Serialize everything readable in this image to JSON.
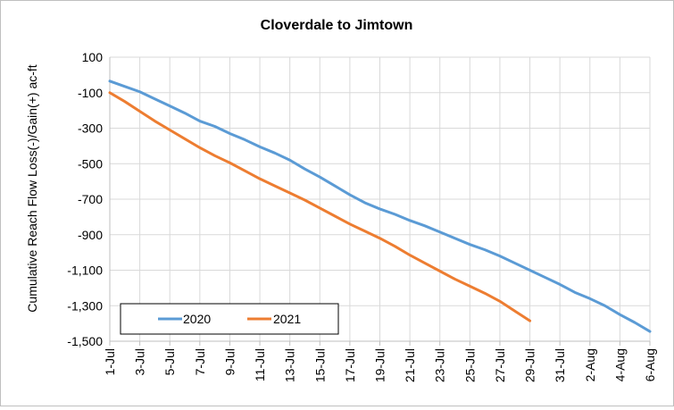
{
  "chart_data": {
    "type": "line",
    "title": "Cloverdale to Jimtown",
    "xlabel": "",
    "ylabel": "Cumulative Reach Flow Loss(-)/Gain(+) ac-ft",
    "ylim": [
      -1500,
      100
    ],
    "yticks": [
      100,
      -100,
      -300,
      -500,
      -700,
      -900,
      -1100,
      -1300,
      -1500
    ],
    "ytick_labels": [
      "100",
      "-100",
      "-300",
      "-500",
      "-700",
      "-900",
      "-1,100",
      "-1,300",
      "-1,500"
    ],
    "x_tick_labels": [
      "1-Jul",
      "3-Jul",
      "5-Jul",
      "7-Jul",
      "9-Jul",
      "11-Jul",
      "13-Jul",
      "15-Jul",
      "17-Jul",
      "19-Jul",
      "21-Jul",
      "23-Jul",
      "25-Jul",
      "27-Jul",
      "29-Jul",
      "31-Jul",
      "2-Aug",
      "4-Aug",
      "6-Aug"
    ],
    "grid": true,
    "legend": "bottom-left",
    "series": [
      {
        "name": "2020",
        "color": "#5b9bd5",
        "x": [
          "1-Jul",
          "2-Jul",
          "3-Jul",
          "4-Jul",
          "5-Jul",
          "6-Jul",
          "7-Jul",
          "8-Jul",
          "9-Jul",
          "10-Jul",
          "11-Jul",
          "12-Jul",
          "13-Jul",
          "14-Jul",
          "15-Jul",
          "16-Jul",
          "17-Jul",
          "18-Jul",
          "19-Jul",
          "20-Jul",
          "21-Jul",
          "22-Jul",
          "23-Jul",
          "24-Jul",
          "25-Jul",
          "26-Jul",
          "27-Jul",
          "28-Jul",
          "29-Jul",
          "30-Jul",
          "31-Jul",
          "1-Aug",
          "2-Aug",
          "3-Aug",
          "4-Aug",
          "5-Aug",
          "6-Aug"
        ],
        "values": [
          -35,
          -65,
          -95,
          -135,
          -175,
          -215,
          -260,
          -290,
          -330,
          -365,
          -405,
          -440,
          -480,
          -530,
          -575,
          -625,
          -675,
          -720,
          -755,
          -785,
          -820,
          -850,
          -885,
          -920,
          -955,
          -985,
          -1020,
          -1060,
          -1100,
          -1140,
          -1180,
          -1225,
          -1260,
          -1300,
          -1350,
          -1395,
          -1445
        ]
      },
      {
        "name": "2021",
        "color": "#ed7d31",
        "x": [
          "1-Jul",
          "2-Jul",
          "3-Jul",
          "4-Jul",
          "5-Jul",
          "6-Jul",
          "7-Jul",
          "8-Jul",
          "9-Jul",
          "10-Jul",
          "11-Jul",
          "12-Jul",
          "13-Jul",
          "14-Jul",
          "15-Jul",
          "16-Jul",
          "17-Jul",
          "18-Jul",
          "19-Jul",
          "20-Jul",
          "21-Jul",
          "22-Jul",
          "23-Jul",
          "24-Jul",
          "25-Jul",
          "26-Jul",
          "27-Jul",
          "28-Jul",
          "29-Jul"
        ],
        "values": [
          -100,
          -150,
          -205,
          -260,
          -310,
          -360,
          -410,
          -455,
          -495,
          -540,
          -585,
          -625,
          -665,
          -705,
          -750,
          -795,
          -840,
          -880,
          -920,
          -965,
          -1015,
          -1060,
          -1105,
          -1150,
          -1190,
          -1230,
          -1275,
          -1330,
          -1385
        ]
      }
    ]
  }
}
